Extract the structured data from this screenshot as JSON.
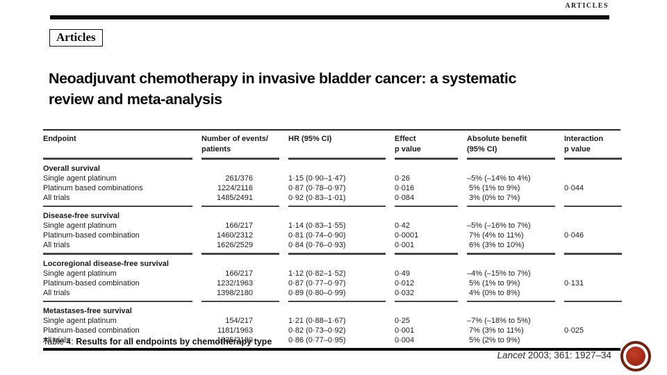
{
  "page": {
    "running_head": "ARTICLES",
    "articles_label": "Articles",
    "title": "Neoadjuvant chemotherapy in invasive bladder cancer: a systematic\nreview and meta-analysis"
  },
  "table": {
    "columns": {
      "endpoint": "Endpoint",
      "events": "Number of events/\npatients",
      "hr": "HR (95% CI)",
      "effect_p": "Effect\np value",
      "benefit": "Absolute benefit\n(95% CI)",
      "interaction_p": "Interaction\np value"
    },
    "sections": [
      {
        "name": "Overall survival",
        "rows": [
          {
            "endpoint": "Single agent platinum",
            "events": "261/376",
            "hr": "1·15 (0·90–1·47)",
            "effect_p": "0·26",
            "benefit": "–5% (–14% to 4%)",
            "interaction_p": ""
          },
          {
            "endpoint": "Platinum based combinations",
            "events": "1224/2116",
            "hr": "0·87 (0·78–0·97)",
            "effect_p": "0·016",
            "benefit": " 5% (1% to 9%)",
            "interaction_p": "0·044"
          },
          {
            "endpoint": "All trials",
            "events": "1485/2491",
            "hr": "0·92 (0·83–1·01)",
            "effect_p": "0·084",
            "benefit": " 3% (0% to 7%)",
            "interaction_p": ""
          }
        ]
      },
      {
        "name": "Disease-free survival",
        "rows": [
          {
            "endpoint": "Single agent platinum",
            "events": "166/217",
            "hr": "1·14 (0·83–1·55)",
            "effect_p": "0·42",
            "benefit": "–5% (–16% to 7%)",
            "interaction_p": ""
          },
          {
            "endpoint": "Platinum-based combination",
            "events": "1460/2312",
            "hr": "0·81 (0·74–0·90)",
            "effect_p": "0·0001",
            "benefit": " 7% (4% to 11%)",
            "interaction_p": "0·046"
          },
          {
            "endpoint": "All trials",
            "events": "1626/2529",
            "hr": "0·84 (0·76–0·93)",
            "effect_p": "0·001",
            "benefit": " 6% (3% to 10%)",
            "interaction_p": ""
          }
        ]
      },
      {
        "name": "Locoregional disease-free survival",
        "rows": [
          {
            "endpoint": "Single agent platinum",
            "events": "166/217",
            "hr": "1·12 (0·82–1·52)",
            "effect_p": "0·49",
            "benefit": "–4% (–15% to 7%)",
            "interaction_p": ""
          },
          {
            "endpoint": "Platinum-based combination",
            "events": "1232/1963",
            "hr": "0·87 (0·77–0·97)",
            "effect_p": "0·012",
            "benefit": " 5% (1% to 9%)",
            "interaction_p": "0·131"
          },
          {
            "endpoint": "All trials",
            "events": "1398/2180",
            "hr": "0·89 (0·80–0·99)",
            "effect_p": "0·032",
            "benefit": " 4% (0% to 8%)",
            "interaction_p": ""
          }
        ]
      },
      {
        "name": "Metastases-free survival",
        "rows": [
          {
            "endpoint": "Single agent platinum",
            "events": "154/217",
            "hr": "1·21 (0·88–1·67)",
            "effect_p": "0·25",
            "benefit": "–7% (–18% to 5%)",
            "interaction_p": ""
          },
          {
            "endpoint": "Platinum-based combination",
            "events": "1181/1963",
            "hr": "0·82 (0·73–0·92)",
            "effect_p": "0·001",
            "benefit": " 7% (3% to 11%)",
            "interaction_p": "0·025"
          },
          {
            "endpoint": "All trials",
            "events": "1335/2180",
            "hr": "0·86 (0·77–0·95)",
            "effect_p": "0·004",
            "benefit": " 5% (2% to 9%)",
            "interaction_p": ""
          }
        ]
      }
    ],
    "caption_prefix": "Table 4: ",
    "caption_text": "Results for all endpoints by chemotherapy type"
  },
  "footer": {
    "journal": "Lancet",
    "citation_rest": " 2003; 361: 1927–34"
  },
  "colors": {
    "seal_ring": "#72200f",
    "seal_fill": "#a82b18",
    "rule": "#0c0c0c"
  }
}
